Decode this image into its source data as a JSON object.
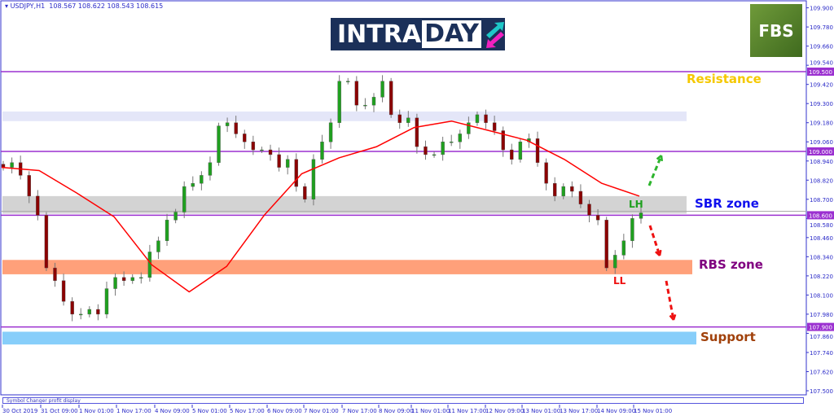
{
  "header": {
    "symbol": "USDJPY,H1",
    "ohlc": "108.567 108.622 108.543 108.615"
  },
  "logo": {
    "text_a": "INTRA",
    "text_b": "DAY"
  },
  "broker_logo": "FBS",
  "footer": {
    "indicator": "Symbol Changer profit display"
  },
  "annotations": {
    "resistance": "Resistance",
    "sbr": "SBR zone",
    "rbs": "RBS zone",
    "support": "Support",
    "lh": "LH",
    "ll": "LL"
  },
  "colors": {
    "bull": "#1fa01f",
    "bear": "#8b0000",
    "ma": "#ff0000",
    "level": "#9b30d0",
    "axis": "#3333cc",
    "resistance": "#f5c800",
    "sbr": "#1010ee",
    "rbs": "#800080",
    "support": "#a0400a",
    "lh": "#1fa01f",
    "ll": "#ee1111"
  },
  "chart_data": {
    "type": "candlestick",
    "ylim": [
      107.5,
      109.9
    ],
    "yticks": [
      "109.900",
      "109.780",
      "109.660",
      "109.540",
      "109.420",
      "109.300",
      "109.180",
      "109.060",
      "108.940",
      "108.820",
      "108.700",
      "108.580",
      "108.460",
      "108.340",
      "108.220",
      "108.100",
      "107.980",
      "107.860",
      "107.740",
      "107.620",
      "107.500"
    ],
    "xticks": [
      "30 Oct 2019",
      "31 Oct 09:00",
      "1 Nov 01:00",
      "1 Nov 17:00",
      "4 Nov 09:00",
      "5 Nov 01:00",
      "5 Nov 17:00",
      "6 Nov 09:00",
      "7 Nov 01:00",
      "7 Nov 17:00",
      "8 Nov 09:00",
      "11 Nov 01:00",
      "11 Nov 17:00",
      "12 Nov 09:00",
      "13 Nov 01:00",
      "13 Nov 17:00",
      "14 Nov 09:00",
      "15 Nov 01:00"
    ],
    "closes": [
      108.9,
      108.93,
      108.85,
      108.72,
      108.6,
      108.27,
      108.19,
      108.06,
      107.98,
      107.98,
      108.01,
      107.98,
      108.14,
      108.21,
      108.19,
      108.21,
      108.21,
      108.37,
      108.44,
      108.57,
      108.62,
      108.78,
      108.8,
      108.85,
      108.93,
      109.16,
      109.18,
      109.11,
      109.06,
      109.01,
      109.01,
      108.98,
      108.9,
      108.95,
      108.78,
      108.7,
      108.95,
      109.06,
      109.18,
      109.44,
      109.44,
      109.29,
      109.29,
      109.34,
      109.44,
      109.23,
      109.18,
      109.21,
      109.03,
      108.98,
      108.98,
      109.06,
      109.06,
      109.11,
      109.18,
      109.23,
      109.18,
      109.13,
      109.01,
      108.95,
      109.06,
      109.08,
      108.93,
      108.8,
      108.72,
      108.78,
      108.75,
      108.67,
      108.6,
      108.57,
      108.27,
      108.35,
      108.44,
      108.58,
      108.615
    ],
    "moving_average": [
      108.9,
      108.88,
      108.74,
      108.59,
      108.29,
      108.12,
      108.28,
      108.6,
      108.86,
      108.96,
      109.03,
      109.15,
      109.19,
      109.13,
      109.07,
      108.95,
      108.8,
      108.72
    ],
    "levels": [
      {
        "price": 109.5,
        "label": "109.500"
      },
      {
        "price": 109.0,
        "label": "109.000"
      },
      {
        "price": 108.6,
        "label": "108.600"
      },
      {
        "price": 107.9,
        "label": "107.900"
      }
    ],
    "current_price": "108.615",
    "zones": [
      {
        "from": 109.19,
        "to": 109.25,
        "color": "#e4e6f8"
      },
      {
        "from": 108.61,
        "to": 108.72,
        "color": "#d3d3d3",
        "name": "SBR zone"
      },
      {
        "from": 108.23,
        "to": 108.32,
        "color": "#ffa07a",
        "name": "RBS zone"
      },
      {
        "from": 107.79,
        "to": 107.87,
        "color": "#87cefa",
        "name": "Support"
      }
    ]
  }
}
